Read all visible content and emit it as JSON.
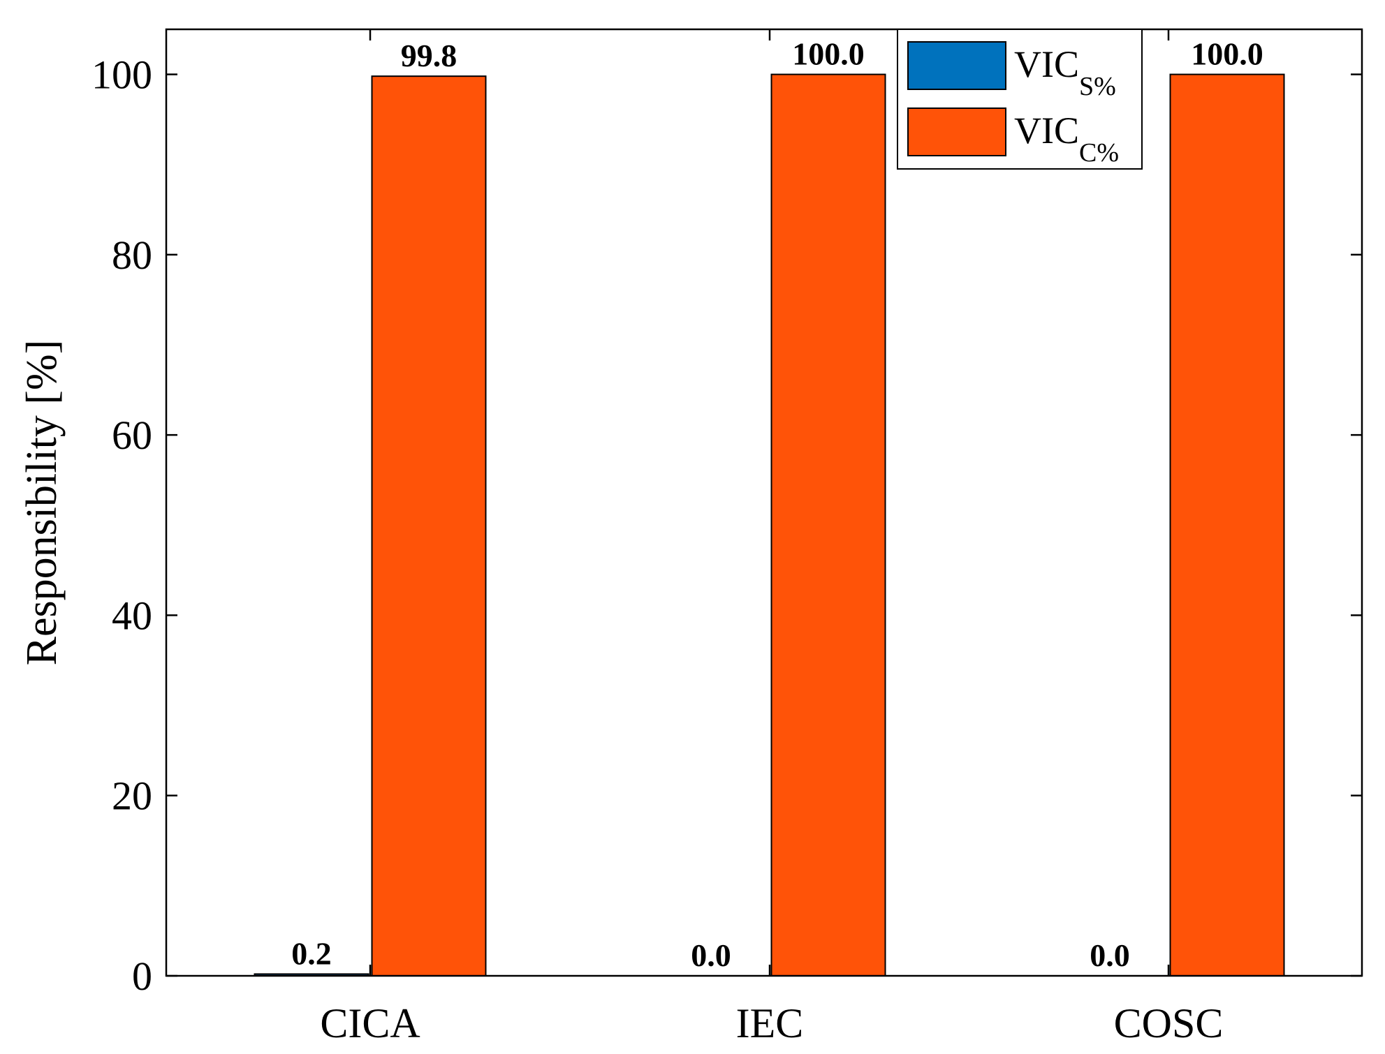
{
  "chart_data": {
    "type": "bar",
    "title": "",
    "xlabel": "",
    "ylabel": "Responsibility [%]",
    "ylim": [
      0,
      105
    ],
    "yticks": [
      0,
      20,
      40,
      60,
      80,
      100
    ],
    "grid": false,
    "legend_position": "top-center",
    "categories": [
      "CICA",
      "IEC",
      "COSC"
    ],
    "series": [
      {
        "name": "VIC_S%",
        "legend_main": "VIC",
        "legend_sub": "S%",
        "color": "#0072BD",
        "values": [
          0.2,
          0.0,
          0.0
        ],
        "labels": [
          "0.2",
          "0.0",
          "0.0"
        ]
      },
      {
        "name": "VIC_C%",
        "legend_main": "VIC",
        "legend_sub": "C%",
        "color": "#FF5308",
        "values": [
          99.8,
          100.0,
          100.0
        ],
        "labels": [
          "99.8",
          "100.0",
          "100.0"
        ]
      }
    ]
  }
}
